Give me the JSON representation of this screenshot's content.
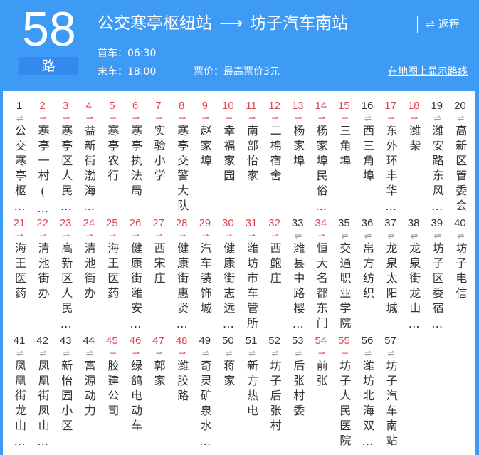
{
  "route": {
    "number": "58",
    "suffix": "路",
    "from": "公交寒亭枢纽站",
    "arrow": "⟶",
    "to": "坊子汽车南站",
    "return_label": "返程",
    "first_bus": "首车：06:30",
    "last_bus": "末车：18:00",
    "fare": "票价：最高票价3元",
    "map_link": "在地图上显示路线"
  },
  "colors": {
    "header": "#3d9af5",
    "one_way": "#e2454f",
    "both_ways": "#999999"
  },
  "stops": [
    {
      "n": "1",
      "name": "公交寒亭枢…",
      "dir": "both"
    },
    {
      "n": "2",
      "name": "寒亭一村(…",
      "dir": "one-way"
    },
    {
      "n": "3",
      "name": "寒亭区人民…",
      "dir": "one-way"
    },
    {
      "n": "4",
      "name": "益新街渤海…",
      "dir": "one-way"
    },
    {
      "n": "5",
      "name": "寒亭农行",
      "dir": "one-way"
    },
    {
      "n": "6",
      "name": "寒亭执法局",
      "dir": "one-way"
    },
    {
      "n": "7",
      "name": "实验小学",
      "dir": "one-way"
    },
    {
      "n": "8",
      "name": "寒亭交警大队",
      "dir": "one-way"
    },
    {
      "n": "9",
      "name": "赵家埠",
      "dir": "one-way"
    },
    {
      "n": "10",
      "name": "幸福家园",
      "dir": "one-way"
    },
    {
      "n": "11",
      "name": "南部怡家",
      "dir": "one-way"
    },
    {
      "n": "12",
      "name": "二棉宿舍",
      "dir": "one-way"
    },
    {
      "n": "13",
      "name": "杨家埠",
      "dir": "one-way"
    },
    {
      "n": "14",
      "name": "杨家埠民俗…",
      "dir": "one-way"
    },
    {
      "n": "15",
      "name": "三角埠",
      "dir": "one-way"
    },
    {
      "n": "16",
      "name": "西三角埠",
      "dir": "both"
    },
    {
      "n": "17",
      "name": "东外环丰华…",
      "dir": "one-way"
    },
    {
      "n": "18",
      "name": "潍柴",
      "dir": "one-way"
    },
    {
      "n": "19",
      "name": "潍安路东风…",
      "dir": "both"
    },
    {
      "n": "20",
      "name": "高新区管委会",
      "dir": "both"
    },
    {
      "n": "21",
      "name": "海王医药",
      "dir": "one-way"
    },
    {
      "n": "22",
      "name": "清池街办",
      "dir": "one-way"
    },
    {
      "n": "23",
      "name": "高新区人民…",
      "dir": "one-way"
    },
    {
      "n": "24",
      "name": "清池街办",
      "dir": "one-way"
    },
    {
      "n": "25",
      "name": "海王医药",
      "dir": "one-way"
    },
    {
      "n": "26",
      "name": "健康街潍安…",
      "dir": "one-way"
    },
    {
      "n": "27",
      "name": "西宋庄",
      "dir": "one-way"
    },
    {
      "n": "28",
      "name": "健康街惠贤…",
      "dir": "one-way"
    },
    {
      "n": "29",
      "name": "汽车装饰城",
      "dir": "one-way"
    },
    {
      "n": "30",
      "name": "健康街志远…",
      "dir": "one-way"
    },
    {
      "n": "31",
      "name": "潍坊市车管所",
      "dir": "one-way"
    },
    {
      "n": "32",
      "name": "西鲍庄",
      "dir": "one-way"
    },
    {
      "n": "33",
      "name": "潍县中路樱…",
      "dir": "both"
    },
    {
      "n": "34",
      "name": "恒大名都东门",
      "dir": "one-way"
    },
    {
      "n": "35",
      "name": "交通职业学院",
      "dir": "both"
    },
    {
      "n": "36",
      "name": "帛方纺织",
      "dir": "both"
    },
    {
      "n": "37",
      "name": "龙泉太阳城",
      "dir": "both"
    },
    {
      "n": "38",
      "name": "龙泉街龙山…",
      "dir": "both"
    },
    {
      "n": "39",
      "name": "坊子区委宿…",
      "dir": "both"
    },
    {
      "n": "40",
      "name": "坊子电信",
      "dir": "both"
    },
    {
      "n": "41",
      "name": "凤凰街龙山…",
      "dir": "both"
    },
    {
      "n": "42",
      "name": "凤凰街凤山…",
      "dir": "both"
    },
    {
      "n": "43",
      "name": "新怡园小区",
      "dir": "both"
    },
    {
      "n": "44",
      "name": "富源动力",
      "dir": "both"
    },
    {
      "n": "45",
      "name": "胶建公司",
      "dir": "one-way"
    },
    {
      "n": "46",
      "name": "绿鸽电动车",
      "dir": "one-way"
    },
    {
      "n": "47",
      "name": "郭家",
      "dir": "one-way"
    },
    {
      "n": "48",
      "name": "潍胶路",
      "dir": "one-way"
    },
    {
      "n": "49",
      "name": "奇灵矿泉水…",
      "dir": "both"
    },
    {
      "n": "50",
      "name": "蒋家",
      "dir": "both"
    },
    {
      "n": "51",
      "name": "新方热电",
      "dir": "both"
    },
    {
      "n": "52",
      "name": "坊子后张村",
      "dir": "both"
    },
    {
      "n": "53",
      "name": "后张村委",
      "dir": "both"
    },
    {
      "n": "54",
      "name": "前张",
      "dir": "one-way"
    },
    {
      "n": "55",
      "name": "坊子人民医院",
      "dir": "one-way"
    },
    {
      "n": "56",
      "name": "潍坊北海双…",
      "dir": "both"
    },
    {
      "n": "57",
      "name": "坊子汽车南站",
      "dir": "both"
    }
  ]
}
